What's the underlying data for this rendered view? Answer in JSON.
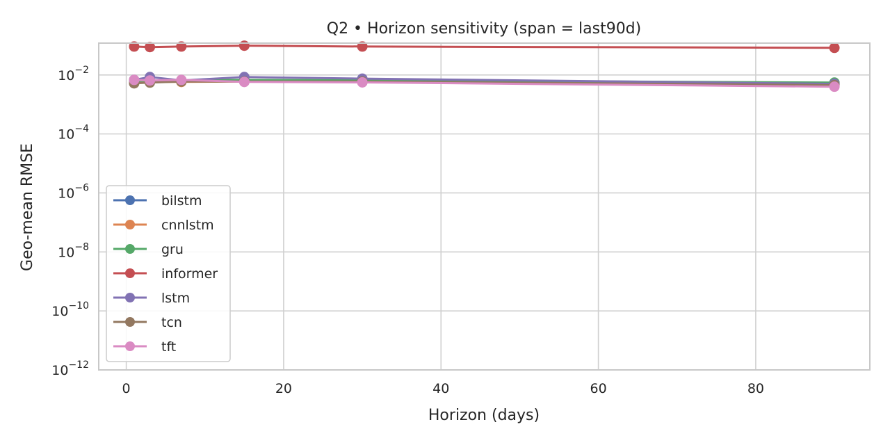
{
  "chart_data": {
    "type": "line",
    "title": "Q2 • Horizon sensitivity (span = last90d)",
    "xlabel": "Horizon (days)",
    "ylabel": "Geo-mean RMSE",
    "xlim": [
      -3.5,
      94.5
    ],
    "ylim": [
      1e-12,
      0.12
    ],
    "yscale": "log",
    "grid": true,
    "legend_position": "lower-left",
    "x_ticks": [
      0,
      20,
      40,
      60,
      80
    ],
    "y_ticks": [
      {
        "base": "10",
        "exp": "−12",
        "value": 1e-12
      },
      {
        "base": "10",
        "exp": "−10",
        "value": 1e-10
      },
      {
        "base": "10",
        "exp": "−8",
        "value": 1e-08
      },
      {
        "base": "10",
        "exp": "−6",
        "value": 1e-06
      },
      {
        "base": "10",
        "exp": "−4",
        "value": 0.0001
      },
      {
        "base": "10",
        "exp": "−2",
        "value": 0.01
      }
    ],
    "series": [
      {
        "name": "bilstm",
        "color": "#4c72b0",
        "x": [
          1,
          3,
          7,
          15,
          30,
          90
        ],
        "y": [
          0.0065,
          0.0065,
          0.0062,
          0.0062,
          0.0062,
          0.0052
        ]
      },
      {
        "name": "cnnlstm",
        "color": "#dd8452",
        "x": [
          1,
          3,
          7,
          15,
          30,
          90
        ],
        "y": [
          0.0055,
          0.0058,
          0.0058,
          0.006,
          0.0058,
          0.0048
        ]
      },
      {
        "name": "gru",
        "color": "#55a868",
        "x": [
          1,
          3,
          7,
          15,
          30,
          90
        ],
        "y": [
          0.0062,
          0.0064,
          0.0065,
          0.0068,
          0.0066,
          0.0055
        ]
      },
      {
        "name": "informer",
        "color": "#c44e52",
        "x": [
          1,
          3,
          7,
          15,
          30,
          90
        ],
        "y": [
          0.092,
          0.088,
          0.092,
          0.098,
          0.092,
          0.083
        ]
      },
      {
        "name": "lstm",
        "color": "#8172b3",
        "x": [
          1,
          3,
          7,
          15,
          30,
          90
        ],
        "y": [
          0.0068,
          0.0085,
          0.0065,
          0.0085,
          0.0075,
          0.005
        ]
      },
      {
        "name": "tcn",
        "color": "#937860",
        "x": [
          1,
          3,
          7,
          15,
          30,
          90
        ],
        "y": [
          0.0052,
          0.0055,
          0.006,
          0.006,
          0.006,
          0.0045
        ]
      },
      {
        "name": "tft",
        "color": "#da8bc3",
        "x": [
          1,
          3,
          7,
          15,
          30,
          90
        ],
        "y": [
          0.0068,
          0.0065,
          0.0068,
          0.0058,
          0.0056,
          0.004
        ]
      }
    ]
  }
}
